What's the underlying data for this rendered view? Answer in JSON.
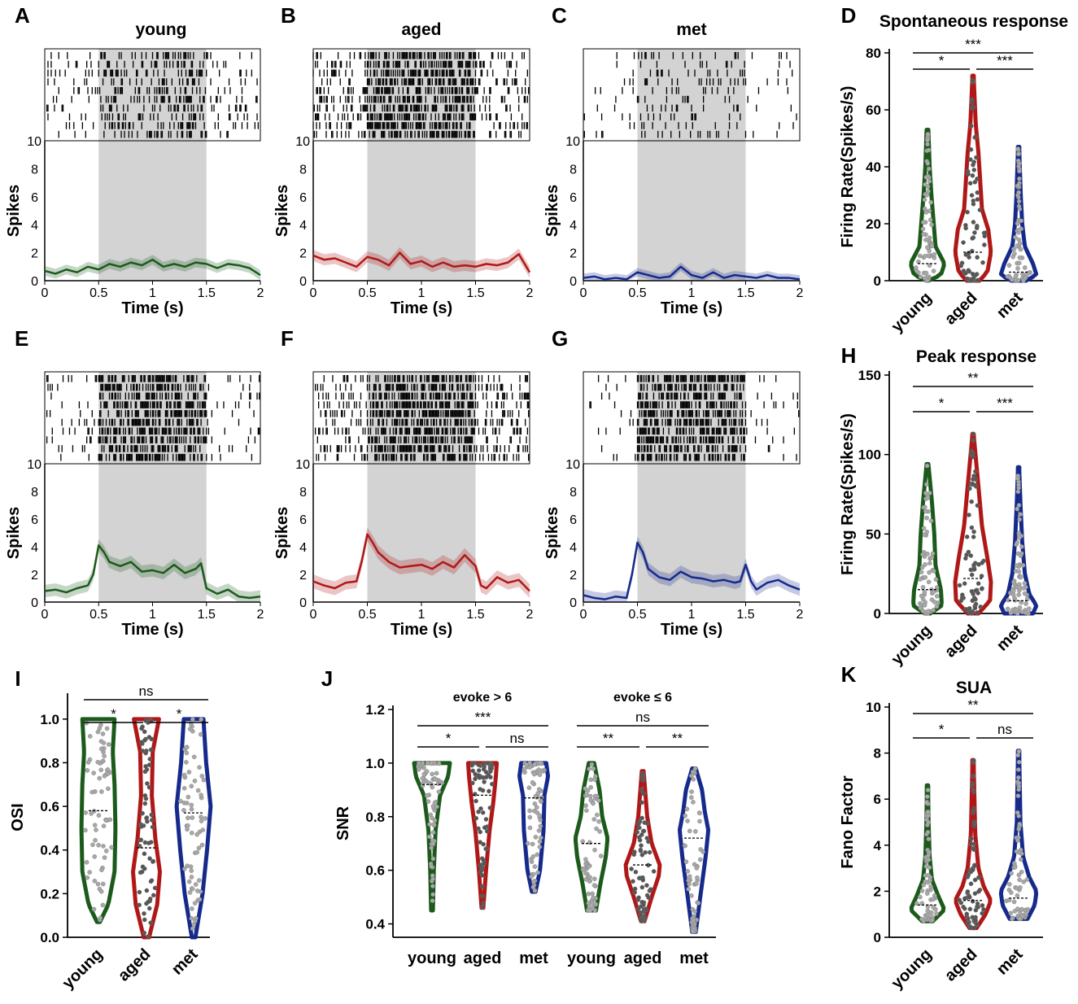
{
  "colors": {
    "young": "#1c5a1c",
    "aged": "#b01818",
    "met": "#162a8c",
    "dots": "#a8a8a8",
    "dark_dots": "#555555",
    "shade": "#d3d3d3"
  },
  "spike_panels": [
    {
      "label": "A",
      "title": "young",
      "group": "young",
      "raster_top": "10",
      "xlabel": "Time (s)",
      "ylabel": "Spikes",
      "xticks": [
        "0",
        "0.5",
        "1",
        "1.5",
        "2"
      ],
      "yticks": [
        "0",
        "2",
        "4",
        "6",
        "8"
      ],
      "stim": [
        0.5,
        1.5
      ],
      "psth": {
        "t": [
          0,
          0.1,
          0.2,
          0.3,
          0.4,
          0.5,
          0.6,
          0.7,
          0.8,
          0.9,
          1.0,
          1.1,
          1.2,
          1.3,
          1.4,
          1.5,
          1.6,
          1.7,
          1.8,
          1.9,
          2.0
        ],
        "y": [
          0.7,
          0.5,
          0.8,
          0.6,
          1.0,
          0.8,
          1.2,
          1.0,
          1.3,
          1.1,
          1.5,
          1.0,
          1.2,
          1.0,
          1.3,
          1.2,
          0.9,
          1.2,
          1.1,
          0.9,
          0.4
        ],
        "sem": 0.35
      }
    },
    {
      "label": "B",
      "title": "aged",
      "group": "aged",
      "raster_top": "10",
      "xlabel": "Time (s)",
      "ylabel": "Spikes",
      "xticks": [
        "0",
        "0.5",
        "1",
        "1.5",
        "2"
      ],
      "yticks": [
        "0",
        "2",
        "4",
        "6",
        "8"
      ],
      "stim": [
        0.5,
        1.5
      ],
      "psth": {
        "t": [
          0,
          0.1,
          0.2,
          0.3,
          0.4,
          0.5,
          0.6,
          0.7,
          0.8,
          0.9,
          1.0,
          1.1,
          1.2,
          1.3,
          1.4,
          1.5,
          1.6,
          1.7,
          1.8,
          1.9,
          2.0
        ],
        "y": [
          1.8,
          1.5,
          1.6,
          1.3,
          1.0,
          1.7,
          1.5,
          1.1,
          2.0,
          1.2,
          1.4,
          1.0,
          1.3,
          1.0,
          1.1,
          1.0,
          1.2,
          1.1,
          1.3,
          1.9,
          0.6
        ],
        "sem": 0.4
      }
    },
    {
      "label": "C",
      "title": "met",
      "group": "met",
      "raster_top": "10",
      "xlabel": "Time (s)",
      "ylabel": "Spikes",
      "xticks": [
        "0",
        "0.5",
        "1",
        "1.5",
        "2"
      ],
      "yticks": [
        "0",
        "2",
        "4",
        "6",
        "8"
      ],
      "stim": [
        0.5,
        1.5
      ],
      "psth": {
        "t": [
          0,
          0.1,
          0.2,
          0.3,
          0.4,
          0.5,
          0.6,
          0.7,
          0.8,
          0.9,
          1.0,
          1.1,
          1.2,
          1.3,
          1.4,
          1.5,
          1.6,
          1.7,
          1.8,
          1.9,
          2.0
        ],
        "y": [
          0.2,
          0.3,
          0.1,
          0.2,
          0.1,
          0.6,
          0.4,
          0.2,
          0.3,
          1.0,
          0.4,
          0.2,
          0.6,
          0.2,
          0.4,
          0.3,
          0.2,
          0.4,
          0.2,
          0.2,
          0.1
        ],
        "sem": 0.3
      }
    },
    {
      "label": "E",
      "title": "",
      "group": "young",
      "raster_top": "10",
      "xlabel": "Time (s)",
      "ylabel": "Spikes",
      "xticks": [
        "0",
        "0.5",
        "1",
        "1.5",
        "2"
      ],
      "yticks": [
        "0",
        "2",
        "4",
        "6",
        "8"
      ],
      "stim": [
        0.5,
        1.5
      ],
      "psth": {
        "t": [
          0,
          0.1,
          0.2,
          0.3,
          0.4,
          0.45,
          0.5,
          0.55,
          0.6,
          0.7,
          0.8,
          0.9,
          1.0,
          1.1,
          1.2,
          1.3,
          1.4,
          1.45,
          1.5,
          1.6,
          1.7,
          1.8,
          1.9,
          2.0
        ],
        "y": [
          0.8,
          0.9,
          0.7,
          1.0,
          1.2,
          2.0,
          4.1,
          3.6,
          2.9,
          2.6,
          2.9,
          2.2,
          2.3,
          2.1,
          2.7,
          2.1,
          2.4,
          2.8,
          1.0,
          0.6,
          0.9,
          0.4,
          0.3,
          0.4
        ],
        "sem": 0.45
      }
    },
    {
      "label": "F",
      "title": "",
      "group": "aged",
      "raster_top": "10",
      "xlabel": "Time (s)",
      "ylabel": "Spikes",
      "xticks": [
        "0",
        "0.5",
        "1",
        "1.5",
        "2"
      ],
      "yticks": [
        "0",
        "2",
        "4",
        "6",
        "8"
      ],
      "stim": [
        0.5,
        1.5
      ],
      "psth": {
        "t": [
          0,
          0.1,
          0.2,
          0.3,
          0.4,
          0.45,
          0.5,
          0.55,
          0.6,
          0.7,
          0.8,
          0.9,
          1.0,
          1.1,
          1.2,
          1.3,
          1.4,
          1.5,
          1.55,
          1.6,
          1.7,
          1.8,
          1.9,
          2.0
        ],
        "y": [
          1.5,
          1.2,
          1.0,
          1.4,
          1.5,
          3.0,
          4.9,
          4.3,
          3.6,
          2.9,
          2.5,
          2.6,
          2.7,
          2.4,
          2.9,
          2.5,
          3.4,
          2.6,
          1.2,
          1.0,
          1.8,
          1.4,
          1.6,
          0.8
        ],
        "sem": 0.5
      }
    },
    {
      "label": "G",
      "title": "",
      "group": "met",
      "raster_top": "10",
      "xlabel": "Time (s)",
      "ylabel": "Spikes",
      "xticks": [
        "0",
        "0.5",
        "1",
        "1.5",
        "2"
      ],
      "yticks": [
        "0",
        "2",
        "4",
        "6",
        "8"
      ],
      "stim": [
        0.5,
        1.5
      ],
      "psth": {
        "t": [
          0,
          0.1,
          0.2,
          0.3,
          0.4,
          0.45,
          0.5,
          0.55,
          0.6,
          0.7,
          0.8,
          0.9,
          1.0,
          1.1,
          1.2,
          1.3,
          1.4,
          1.45,
          1.5,
          1.55,
          1.6,
          1.7,
          1.8,
          1.9,
          2.0
        ],
        "y": [
          0.5,
          0.3,
          0.2,
          0.4,
          0.3,
          2.0,
          4.3,
          3.6,
          2.4,
          1.8,
          1.6,
          2.2,
          1.8,
          1.7,
          1.5,
          1.6,
          1.4,
          1.5,
          2.7,
          1.5,
          0.9,
          1.4,
          1.6,
          1.2,
          0.9
        ],
        "sem": 0.45
      }
    }
  ],
  "violin_panels": [
    {
      "label": "D",
      "title": "Spontaneous response",
      "ylabel": "Firing Rate(Spikes/s)",
      "yticks": [
        "0",
        "20",
        "40",
        "60",
        "80"
      ],
      "ylim": [
        0,
        80
      ],
      "groups": [
        "young",
        "aged",
        "met"
      ],
      "sig": [
        {
          "text": "***",
          "from": 0,
          "to": 2,
          "level": 1
        },
        {
          "text": "*",
          "from": 0,
          "to": 1,
          "level": 0
        },
        {
          "text": "***",
          "from": 1,
          "to": 2,
          "level": 0
        }
      ]
    },
    {
      "label": "H",
      "title": "Peak response",
      "ylabel": "Firing Rate(Spikes/s)",
      "yticks": [
        "0",
        "50",
        "100",
        "150"
      ],
      "ylim": [
        0,
        150
      ],
      "groups": [
        "young",
        "aged",
        "met"
      ],
      "sig": [
        {
          "text": "**",
          "from": 0,
          "to": 2,
          "level": 1
        },
        {
          "text": "*",
          "from": 0,
          "to": 1,
          "level": 0
        },
        {
          "text": "***",
          "from": 1,
          "to": 2,
          "level": 0
        }
      ]
    },
    {
      "label": "I",
      "title": "",
      "ylabel": "OSI",
      "yticks": [
        "0.0",
        "0.2",
        "0.4",
        "0.6",
        "0.8",
        "1.0"
      ],
      "ylim": [
        0,
        1.1
      ],
      "groups": [
        "young",
        "aged",
        "met"
      ],
      "sig": [
        {
          "text": "ns",
          "from": 0,
          "to": 2,
          "level": 1
        },
        {
          "text": "*",
          "from": 0,
          "to": 1,
          "level": 0
        },
        {
          "text": "*",
          "from": 1,
          "to": 2,
          "level": 0
        }
      ]
    },
    {
      "label": "J",
      "title": "",
      "ylabel": "SNR",
      "yticks": [
        "0.4",
        "0.6",
        "0.8",
        "1.0",
        "1.2"
      ],
      "ylim": [
        0.35,
        1.2
      ],
      "groups": [
        "young",
        "aged",
        "met",
        "young",
        "aged",
        "met"
      ],
      "subtitles": [
        "evoke > 6",
        "evoke ≤ 6"
      ],
      "sig": [
        {
          "text": "***",
          "from": 0,
          "to": 2,
          "level": 1
        },
        {
          "text": "*",
          "from": 0,
          "to": 1,
          "level": 0
        },
        {
          "text": "ns",
          "from": 1,
          "to": 2,
          "level": 0
        },
        {
          "text": "ns",
          "from": 3,
          "to": 5,
          "level": 1
        },
        {
          "text": "**",
          "from": 3,
          "to": 4,
          "level": 0
        },
        {
          "text": "**",
          "from": 4,
          "to": 5,
          "level": 0
        }
      ]
    },
    {
      "label": "K",
      "title": "SUA",
      "ylabel": "Fano Factor",
      "yticks": [
        "0",
        "2",
        "4",
        "6",
        "8",
        "10"
      ],
      "ylim": [
        0,
        10
      ],
      "groups": [
        "young",
        "aged",
        "met"
      ],
      "sig": [
        {
          "text": "**",
          "from": 0,
          "to": 2,
          "level": 1
        },
        {
          "text": "*",
          "from": 0,
          "to": 1,
          "level": 0
        },
        {
          "text": "ns",
          "from": 1,
          "to": 2,
          "level": 0
        }
      ]
    }
  ],
  "chart_data": [
    {
      "type": "line",
      "panel": "A",
      "title": "young",
      "xlabel": "Time (s)",
      "ylabel": "Spikes",
      "xlim": [
        0,
        2
      ],
      "ylim": [
        0,
        10
      ],
      "x": [
        0,
        0.5,
        1,
        1.5,
        2
      ],
      "series": [
        {
          "name": "young",
          "values": [
            0.7,
            0.8,
            1.5,
            1.2,
            0.4
          ]
        }
      ]
    },
    {
      "type": "line",
      "panel": "B",
      "title": "aged",
      "xlabel": "Time (s)",
      "ylabel": "Spikes",
      "xlim": [
        0,
        2
      ],
      "ylim": [
        0,
        10
      ],
      "x": [
        0,
        0.5,
        1,
        1.5,
        2
      ],
      "series": [
        {
          "name": "aged",
          "values": [
            1.8,
            1.7,
            1.4,
            1.0,
            0.6
          ]
        }
      ]
    },
    {
      "type": "line",
      "panel": "C",
      "title": "met",
      "xlabel": "Time (s)",
      "ylabel": "Spikes",
      "xlim": [
        0,
        2
      ],
      "ylim": [
        0,
        10
      ],
      "x": [
        0,
        0.5,
        1,
        1.5,
        2
      ],
      "series": [
        {
          "name": "met",
          "values": [
            0.2,
            0.6,
            0.4,
            0.3,
            0.1
          ]
        }
      ]
    },
    {
      "type": "line",
      "panel": "E",
      "xlabel": "Time (s)",
      "ylabel": "Spikes",
      "xlim": [
        0,
        2
      ],
      "ylim": [
        0,
        10
      ],
      "x": [
        0,
        0.5,
        1,
        1.5,
        2
      ],
      "series": [
        {
          "name": "young",
          "values": [
            0.8,
            4.1,
            2.3,
            1.0,
            0.4
          ]
        }
      ]
    },
    {
      "type": "line",
      "panel": "F",
      "xlabel": "Time (s)",
      "ylabel": "Spikes",
      "xlim": [
        0,
        2
      ],
      "ylim": [
        0,
        10
      ],
      "x": [
        0,
        0.5,
        1,
        1.5,
        2
      ],
      "series": [
        {
          "name": "aged",
          "values": [
            1.5,
            4.9,
            2.7,
            2.6,
            0.8
          ]
        }
      ]
    },
    {
      "type": "line",
      "panel": "G",
      "xlabel": "Time (s)",
      "ylabel": "Spikes",
      "xlim": [
        0,
        2
      ],
      "ylim": [
        0,
        10
      ],
      "x": [
        0,
        0.5,
        1,
        1.5,
        2
      ],
      "series": [
        {
          "name": "met",
          "values": [
            0.5,
            4.3,
            1.8,
            2.7,
            0.9
          ]
        }
      ]
    },
    {
      "type": "violin",
      "panel": "D",
      "title": "Spontaneous response",
      "ylabel": "Firing Rate(Spikes/s)",
      "ylim": [
        0,
        80
      ],
      "categories": [
        "young",
        "aged",
        "met"
      ],
      "max": [
        53,
        72,
        47
      ],
      "median": [
        6,
        10,
        3
      ]
    },
    {
      "type": "violin",
      "panel": "H",
      "title": "Peak response",
      "ylabel": "Firing Rate(Spikes/s)",
      "ylim": [
        0,
        150
      ],
      "categories": [
        "young",
        "aged",
        "met"
      ],
      "max": [
        94,
        113,
        92
      ],
      "median": [
        15,
        22,
        8
      ]
    },
    {
      "type": "violin",
      "panel": "I",
      "ylabel": "OSI",
      "ylim": [
        0,
        1.1
      ],
      "categories": [
        "young",
        "aged",
        "met"
      ],
      "max": [
        1.0,
        1.0,
        1.0
      ],
      "min": [
        0.07,
        0.0,
        0.0
      ],
      "median": [
        0.58,
        0.41,
        0.57
      ]
    },
    {
      "type": "violin",
      "panel": "J",
      "ylabel": "SNR",
      "ylim": [
        0.35,
        1.2
      ],
      "categories": [
        "young",
        "aged",
        "met",
        "young",
        "aged",
        "met"
      ],
      "groups": [
        "evoke > 6",
        "evoke > 6",
        "evoke > 6",
        "evoke ≤ 6",
        "evoke ≤ 6",
        "evoke ≤ 6"
      ],
      "max": [
        1.0,
        1.0,
        1.0,
        1.0,
        0.97,
        0.98
      ],
      "min": [
        0.45,
        0.46,
        0.52,
        0.45,
        0.41,
        0.37
      ],
      "median": [
        0.92,
        0.88,
        0.87,
        0.7,
        0.62,
        0.72
      ]
    },
    {
      "type": "violin",
      "panel": "K",
      "title": "SUA",
      "ylabel": "Fano Factor",
      "ylim": [
        0,
        10
      ],
      "categories": [
        "young",
        "aged",
        "met"
      ],
      "max": [
        6.6,
        7.7,
        8.1
      ],
      "min": [
        0.7,
        0.4,
        0.8
      ],
      "median": [
        1.4,
        1.6,
        1.7
      ]
    }
  ]
}
